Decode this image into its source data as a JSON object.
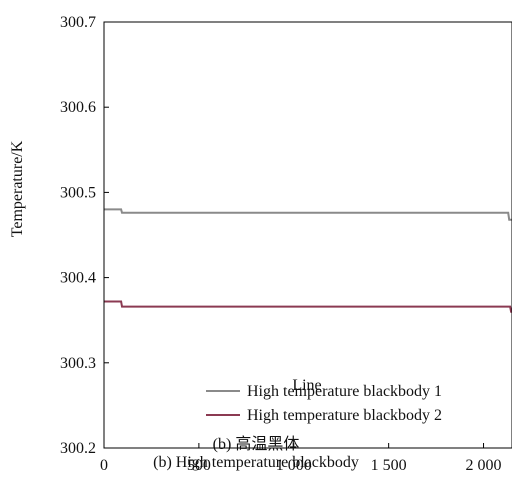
{
  "chart_data": {
    "type": "line",
    "xlabel": "Line",
    "ylabel": "Temperature/K",
    "xlim": [
      0,
      2150
    ],
    "ylim": [
      300.2,
      300.7
    ],
    "x_ticks": [
      0,
      500,
      1000,
      1500,
      2000
    ],
    "x_tick_labels": [
      "0",
      "500",
      "1 000",
      "1 500",
      "2 000"
    ],
    "y_ticks": [
      300.2,
      300.3,
      300.4,
      300.5,
      300.6,
      300.7
    ],
    "y_tick_labels": [
      "300.2",
      "300.3",
      "300.4",
      "300.5",
      "300.6",
      "300.7"
    ],
    "grid": false,
    "legend_position": "bottom-right",
    "series": [
      {
        "name": "High temperature blackbody 1",
        "color": "#8a8a8a",
        "x": [
          0,
          90,
          95,
          2130,
          2135,
          2150
        ],
        "y": [
          300.48,
          300.48,
          300.476,
          300.476,
          300.468,
          300.468
        ]
      },
      {
        "name": "High temperature blackbody 2",
        "color": "#8b3a52",
        "x": [
          0,
          90,
          95,
          2140,
          2145,
          2150
        ],
        "y": [
          300.372,
          300.372,
          300.366,
          300.366,
          300.36,
          300.36
        ]
      }
    ]
  },
  "caption": {
    "line1": "(b) 高温黑体",
    "line2": "(b) High temperature blackbody"
  }
}
